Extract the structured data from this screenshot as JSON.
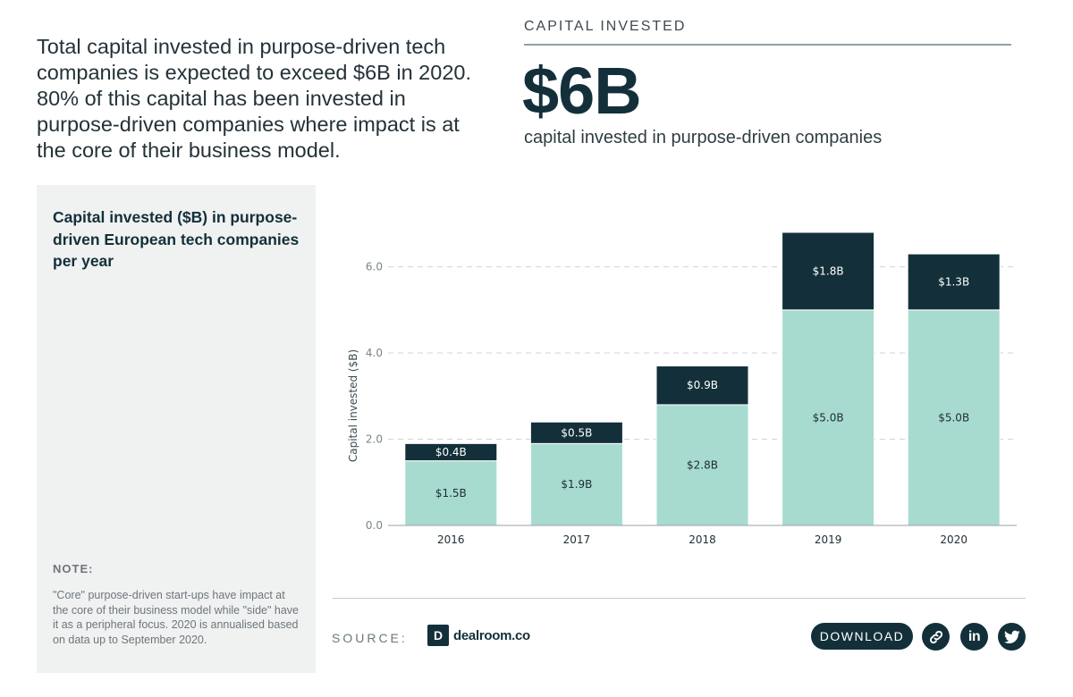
{
  "intro_text": "Total capital invested in purpose-driven tech companies is expected to exceed $6B in 2020. 80% of this capital has been invested in purpose-driven companies where impact is at the core of their business model.",
  "kpi": {
    "label": "CAPITAL INVESTED",
    "value": "$6B",
    "description": "capital invested in purpose-driven companies"
  },
  "panel": {
    "chart_title": "Capital invested ($B) in purpose-driven European tech companies per year",
    "note_heading": "NOTE:",
    "note_text": "\"Core\" purpose-driven start-ups have impact at the core of their business model while \"side\" have it as a peripheral focus. 2020 is annualised based on data up to September 2020."
  },
  "footer": {
    "source_label": "SOURCE:",
    "logo_mark": "D",
    "logo_text": "dealroom.co",
    "download_label": "DOWNLOAD",
    "share_icons": [
      "link-icon",
      "linkedin-icon",
      "twitter-icon"
    ],
    "linkedin_label": "in"
  },
  "colors": {
    "core": "#a8dbd0",
    "side": "#13303a",
    "grid": "#cfd4d6",
    "axis_text": "#7a8488"
  },
  "chart_data": {
    "type": "bar",
    "stacked": true,
    "categories": [
      "2016",
      "2017",
      "2018",
      "2019",
      "2020"
    ],
    "series": [
      {
        "values": [
          1.5,
          1.9,
          2.8,
          5.0,
          5.0
        ],
        "labels": [
          "$1.5B",
          "$1.9B",
          "$2.8B",
          "$5.0B",
          "$5.0B"
        ],
        "color": "#a8dbd0"
      },
      {
        "values": [
          0.4,
          0.5,
          0.9,
          1.8,
          1.3
        ],
        "labels": [
          "$0.4B",
          "$0.5B",
          "$0.9B",
          "$1.8B",
          "$1.3B"
        ],
        "color": "#13303a"
      }
    ],
    "ylabel": "Capital invested ($B)",
    "ylim": [
      0,
      6.8
    ],
    "yticks": [
      0,
      2,
      4,
      6
    ],
    "ytick_labels": [
      "0.0",
      "2.0",
      "4.0",
      "6.0"
    ],
    "grid": true,
    "legend": "none"
  }
}
